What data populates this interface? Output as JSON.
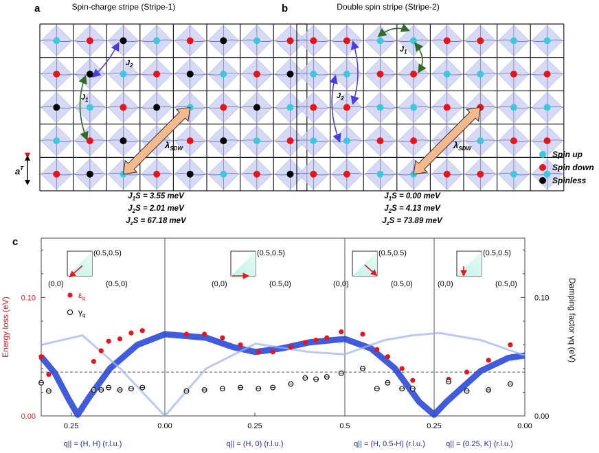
{
  "panel_a": {
    "letter": "a",
    "title": "Spin-charge stripe (Stripe-1)",
    "rows": [
      [
        "u",
        "d",
        "b",
        "u",
        "d",
        "b",
        "u",
        "d"
      ],
      [
        "d",
        "b",
        "u",
        "d",
        "b",
        "u",
        "d",
        "b"
      ],
      [
        "b",
        "u",
        "d",
        "b",
        "u",
        "d",
        "b",
        "u"
      ],
      [
        "u",
        "d",
        "b",
        "u",
        "d",
        "b",
        "u",
        "d"
      ],
      [
        "d",
        "b",
        "u",
        "d",
        "b",
        "u",
        "d",
        "b"
      ]
    ],
    "j1_label": "J",
    "j1_sub": "1",
    "j2_label": "J",
    "j2_sub": "2",
    "lambda_label": "λ",
    "lambda_sub": "SDW",
    "lattice_label": "a",
    "lattice_sup": "T",
    "params": [
      {
        "sym": "J",
        "sub": "1",
        "rest": "S = 3.55 meV"
      },
      {
        "sym": "J",
        "sub": "2",
        "rest": "S = 2.01 meV"
      },
      {
        "sym": "J",
        "sub": "z",
        "rest": "S = 67.18 meV"
      }
    ]
  },
  "panel_b": {
    "letter": "b",
    "title": "Double spin stripe (Stripe-2)",
    "rows": [
      [
        "d",
        "d",
        "u",
        "u",
        "d",
        "d",
        "u",
        "u"
      ],
      [
        "u",
        "u",
        "d",
        "d",
        "u",
        "u",
        "d",
        "d"
      ],
      [
        "d",
        "d",
        "u",
        "u",
        "d",
        "d",
        "u",
        "u"
      ],
      [
        "u",
        "u",
        "d",
        "d",
        "u",
        "u",
        "d",
        "d"
      ],
      [
        "d",
        "d",
        "u",
        "u",
        "d",
        "d",
        "u",
        "u"
      ]
    ],
    "j1_label": "J",
    "j1_sub": "1",
    "j2_label": "J",
    "j2_sub": "2",
    "lambda_label": "λ",
    "lambda_sub": "SDW",
    "params": [
      {
        "sym": "J",
        "sub": "1",
        "rest": "S = 0.00 meV"
      },
      {
        "sym": "J",
        "sub": "2",
        "rest": "S = 4.13 meV"
      },
      {
        "sym": "J",
        "sub": "z",
        "rest": "S = 73.89 meV"
      }
    ]
  },
  "legend": {
    "items": [
      {
        "label": "Spin up",
        "color": "#3ec7e0"
      },
      {
        "label": "Spin down",
        "color": "#e8141c"
      },
      {
        "label": "Spinless",
        "color": "#000000"
      }
    ]
  },
  "colors": {
    "spin_up": "#3ec7e0",
    "spin_down": "#e8141c",
    "spinless": "#000000",
    "energy_axis": "#e8141c",
    "dispersion": "#1f3fd6",
    "q_label": "#1e2a9c",
    "arrow_orange": "#f5b98e",
    "diamond": "#c9cdf0"
  },
  "chart_data": {
    "type": "scatter",
    "panel_letter": "c",
    "ylabel_left": "Energy loss (eV)",
    "ylabel_right": "Damping factor γq (eV)",
    "ylim": [
      0,
      0.15
    ],
    "yticks_left": [
      "0.00",
      "0.10"
    ],
    "yticks_right": [
      "0.00",
      "0.10"
    ],
    "dashed_level": 0.037,
    "segments": [
      {
        "xlabel": "q|| = (H, H) (r.l.u.)",
        "ticks": [
          "0.25",
          "0.00"
        ],
        "start": "0.25",
        "end": "0.00",
        "inset": {
          "origin": "(0,0)",
          "x": "(0.5,0)",
          "y": "(0.5,0.5)"
        },
        "energy": [
          [
            0.33,
            0.05
          ],
          [
            0.31,
            0.035
          ],
          [
            0.19,
            0.046
          ],
          [
            0.17,
            0.055
          ],
          [
            0.15,
            0.063
          ],
          [
            0.12,
            0.065
          ],
          [
            0.09,
            0.07
          ],
          [
            0.06,
            0.072
          ]
        ],
        "damping": [
          [
            0.33,
            0.028
          ],
          [
            0.31,
            0.021
          ],
          [
            0.19,
            0.022
          ],
          [
            0.17,
            0.022
          ],
          [
            0.15,
            0.024
          ],
          [
            0.12,
            0.022
          ],
          [
            0.09,
            0.023
          ],
          [
            0.06,
            0.024
          ]
        ]
      },
      {
        "xlabel": "q|| = (H, 0) (r.l.u.)",
        "ticks": [
          "0.00",
          "0.25",
          "0.5"
        ],
        "start": "0.00",
        "end": "0.5",
        "inset": {
          "origin": "(0,0)",
          "x": "(0.5,0)",
          "y": "(0.5,0.5)"
        },
        "energy": [
          [
            0.06,
            0.069
          ],
          [
            0.11,
            0.069
          ],
          [
            0.16,
            0.066
          ],
          [
            0.21,
            0.06
          ],
          [
            0.26,
            0.054
          ],
          [
            0.3,
            0.054
          ],
          [
            0.35,
            0.058
          ],
          [
            0.39,
            0.062
          ],
          [
            0.42,
            0.064
          ],
          [
            0.45,
            0.066
          ],
          [
            0.49,
            0.071
          ]
        ],
        "damping": [
          [
            0.06,
            0.021
          ],
          [
            0.11,
            0.022
          ],
          [
            0.16,
            0.023
          ],
          [
            0.21,
            0.024
          ],
          [
            0.26,
            0.023
          ],
          [
            0.3,
            0.024
          ],
          [
            0.35,
            0.027
          ],
          [
            0.39,
            0.032
          ],
          [
            0.42,
            0.031
          ],
          [
            0.45,
            0.033
          ],
          [
            0.49,
            0.036
          ]
        ]
      },
      {
        "xlabel": "q|| = (H, 0.5-H) (r.l.u.)",
        "ticks": [
          "0.5",
          "0.25"
        ],
        "start": "0.5",
        "end": "0.25",
        "inset": {
          "origin": "(0,0)",
          "x": "(0.5,0)",
          "y": "(0.5,0.5)"
        },
        "energy": [
          [
            0.45,
            0.069
          ],
          [
            0.41,
            0.056
          ],
          [
            0.38,
            0.05
          ],
          [
            0.34,
            0.04
          ],
          [
            0.31,
            0.03
          ]
        ],
        "damping": [
          [
            0.45,
            0.04
          ],
          [
            0.41,
            0.023
          ],
          [
            0.38,
            0.028
          ],
          [
            0.34,
            0.023
          ],
          [
            0.31,
            0.023
          ]
        ]
      },
      {
        "xlabel": "q|| = (0.25, K) (r.l.u.)",
        "ticks": [
          "0.25",
          "0.00"
        ],
        "start": "0.25",
        "end": "0.00",
        "inset": {
          "origin": "(0,0)",
          "x": "(0.5,0)",
          "y": "(0.5,0.5)"
        },
        "energy": [
          [
            0.21,
            0.031
          ],
          [
            0.16,
            0.037
          ],
          [
            0.1,
            0.047
          ],
          [
            0.04,
            0.06
          ]
        ],
        "damping": [
          [
            0.21,
            0.029
          ],
          [
            0.16,
            0.021
          ],
          [
            0.1,
            0.022
          ],
          [
            0.04,
            0.027
          ]
        ]
      }
    ],
    "legend": [
      {
        "symbol": "filled-circle",
        "label": "ε",
        "sub": "q",
        "color": "#e8141c"
      },
      {
        "symbol": "open-circle",
        "label": "γ",
        "sub": "q",
        "color": "#000000"
      }
    ]
  }
}
